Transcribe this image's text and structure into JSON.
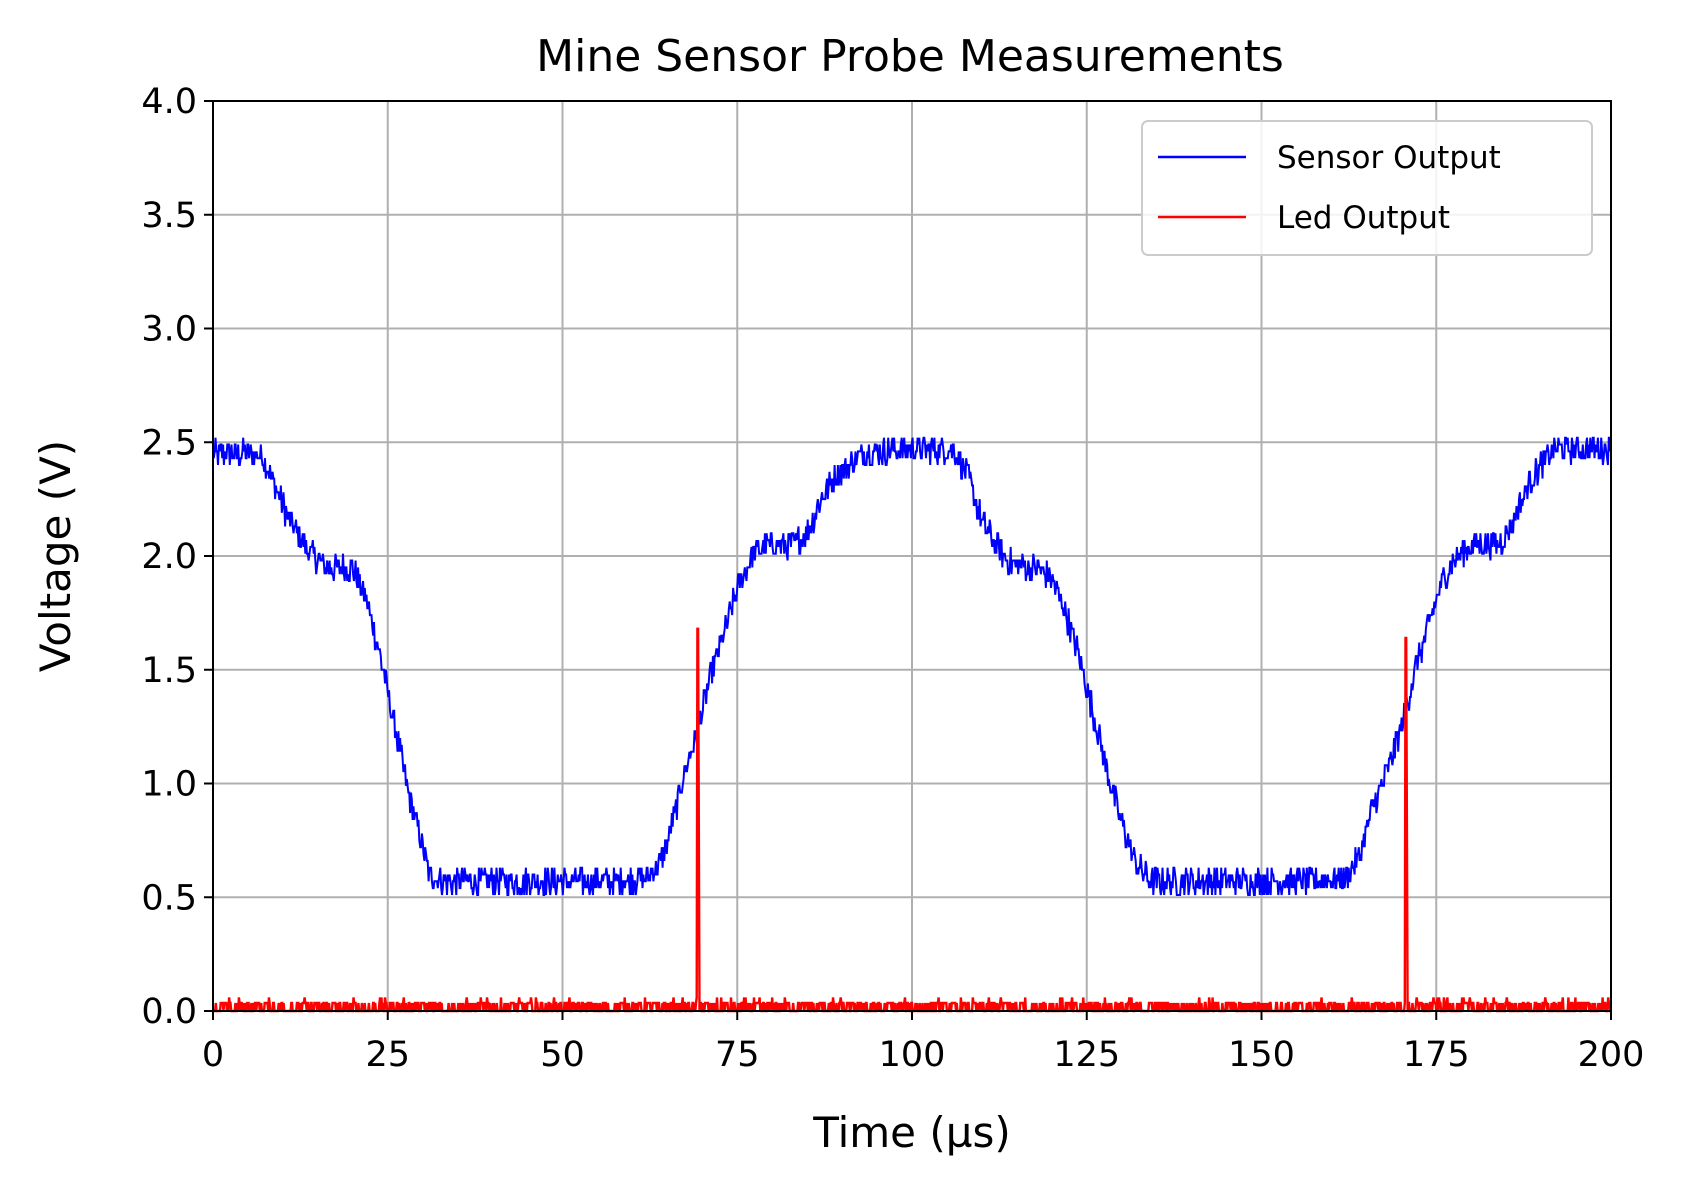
{
  "chart_data": {
    "type": "line",
    "title": "Mine Sensor Probe Measurements",
    "xlabel": "Time (µs)",
    "ylabel": "Voltage (V)",
    "xlim": [
      0,
      200
    ],
    "ylim": [
      0,
      4.0
    ],
    "xticks": [
      "0",
      "25",
      "50",
      "75",
      "100",
      "125",
      "150",
      "175",
      "200"
    ],
    "yticks": [
      "0.0",
      "0.5",
      "1.0",
      "1.5",
      "2.0",
      "2.5",
      "3.0",
      "3.5",
      "4.0"
    ],
    "grid": true,
    "legend_position": "top-right",
    "series": [
      {
        "name": "Sensor Output",
        "color": "#0000ff",
        "noise_amplitude": 0.06,
        "x": [
          0,
          7,
          9,
          11,
          13,
          16,
          18,
          20,
          22,
          24,
          26,
          28,
          30,
          31,
          33,
          38,
          43,
          48,
          53,
          58,
          62,
          64,
          66,
          67,
          69,
          71,
          73,
          75,
          77,
          79,
          81,
          83,
          85,
          87,
          89,
          91,
          93,
          98,
          103,
          106,
          108,
          110,
          112,
          114,
          116,
          118,
          120,
          122,
          124,
          126,
          128,
          130,
          132,
          134,
          137,
          142,
          147,
          152,
          157,
          162,
          164,
          166,
          168,
          170,
          172,
          174,
          176,
          178,
          180,
          182,
          184,
          186,
          188,
          190,
          192,
          200
        ],
        "y": [
          2.45,
          2.45,
          2.3,
          2.15,
          2.05,
          1.95,
          1.95,
          1.95,
          1.8,
          1.55,
          1.25,
          0.95,
          0.72,
          0.6,
          0.57,
          0.57,
          0.57,
          0.57,
          0.57,
          0.57,
          0.58,
          0.65,
          0.85,
          1.0,
          1.2,
          1.45,
          1.65,
          1.85,
          2.0,
          2.05,
          2.05,
          2.05,
          2.1,
          2.25,
          2.35,
          2.4,
          2.45,
          2.47,
          2.47,
          2.47,
          2.35,
          2.15,
          2.05,
          1.97,
          1.95,
          1.95,
          1.9,
          1.75,
          1.55,
          1.3,
          1.05,
          0.82,
          0.65,
          0.57,
          0.57,
          0.57,
          0.57,
          0.57,
          0.57,
          0.58,
          0.68,
          0.9,
          1.05,
          1.25,
          1.5,
          1.7,
          1.9,
          2.0,
          2.05,
          2.05,
          2.05,
          2.15,
          2.3,
          2.4,
          2.47,
          2.47
        ]
      },
      {
        "name": "Led Output",
        "color": "#ff0000",
        "noise_amplitude": 0.04,
        "x": [
          0,
          69.2,
          69.3,
          69.4,
          69.6,
          170.5,
          170.6,
          170.7,
          170.9,
          200
        ],
        "y": [
          0,
          0,
          1.68,
          1.68,
          0,
          0,
          1.64,
          1.64,
          0,
          0
        ]
      }
    ]
  }
}
